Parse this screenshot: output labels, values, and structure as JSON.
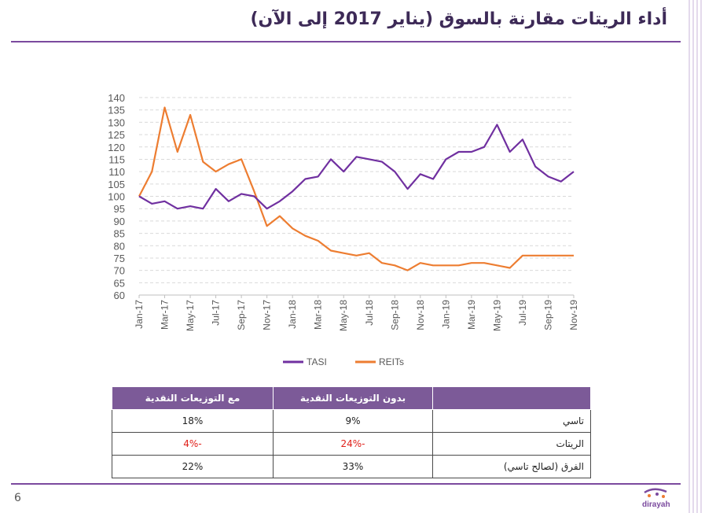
{
  "slide": {
    "title": "أداء الريتات مقارنة بالسوق (يناير 2017 إلى الآن)",
    "page_number": "6",
    "logo_text": "dirayah"
  },
  "colors": {
    "accent": "#7b4a9e",
    "tasi": "#7030a0",
    "reits": "#ed7d31",
    "header": "#7c5a98",
    "negative": "#e0201a"
  },
  "chart_data": {
    "type": "line",
    "title": "",
    "xlabel": "",
    "ylabel": "",
    "ylim": [
      60,
      140
    ],
    "yticks": [
      60,
      65,
      70,
      75,
      80,
      85,
      90,
      95,
      100,
      105,
      110,
      115,
      120,
      125,
      130,
      135,
      140
    ],
    "grid": true,
    "legend_position": "bottom",
    "x_tick_labels": [
      "Jan-17",
      "Mar-17",
      "May-17",
      "Jul-17",
      "Sep-17",
      "Nov-17",
      "Jan-18",
      "Mar-18",
      "May-18",
      "Jul-18",
      "Sep-18",
      "Nov-18",
      "Jan-19",
      "Mar-19",
      "May-19",
      "Jul-19",
      "Sep-19",
      "Nov-19"
    ],
    "x": [
      "Jan-17",
      "Feb-17",
      "Mar-17",
      "Apr-17",
      "May-17",
      "Jun-17",
      "Jul-17",
      "Aug-17",
      "Sep-17",
      "Oct-17",
      "Nov-17",
      "Dec-17",
      "Jan-18",
      "Feb-18",
      "Mar-18",
      "Apr-18",
      "May-18",
      "Jun-18",
      "Jul-18",
      "Aug-18",
      "Sep-18",
      "Oct-18",
      "Nov-18",
      "Dec-18",
      "Jan-19",
      "Feb-19",
      "Mar-19",
      "Apr-19",
      "May-19",
      "Jun-19",
      "Jul-19",
      "Aug-19",
      "Sep-19",
      "Oct-19",
      "Nov-19"
    ],
    "series": [
      {
        "name": "TASI",
        "color": "#7030a0",
        "values": [
          100,
          97,
          98,
          95,
          96,
          95,
          103,
          98,
          101,
          100,
          95,
          98,
          102,
          107,
          108,
          115,
          110,
          116,
          115,
          114,
          110,
          103,
          109,
          107,
          115,
          118,
          118,
          120,
          129,
          118,
          123,
          112,
          108,
          106,
          110
        ]
      },
      {
        "name": "REITs",
        "color": "#ed7d31",
        "values": [
          100,
          110,
          136,
          118,
          133,
          114,
          110,
          113,
          115,
          102,
          88,
          92,
          87,
          84,
          82,
          78,
          77,
          76,
          77,
          73,
          72,
          70,
          73,
          72,
          72,
          72,
          73,
          73,
          72,
          71,
          76,
          76,
          76,
          76,
          76
        ]
      }
    ]
  },
  "table": {
    "headers": [
      "",
      "بدون التوزيعات النقدية",
      "مع التوزيعات النقدية"
    ],
    "rows": [
      {
        "label": "تاسي",
        "without": "9%",
        "with": "18%"
      },
      {
        "label": "الريتات",
        "without": "-24%",
        "with": "-4%"
      },
      {
        "label": "الفرق (لصالح تاسي)",
        "without": "33%",
        "with": "22%"
      }
    ]
  }
}
